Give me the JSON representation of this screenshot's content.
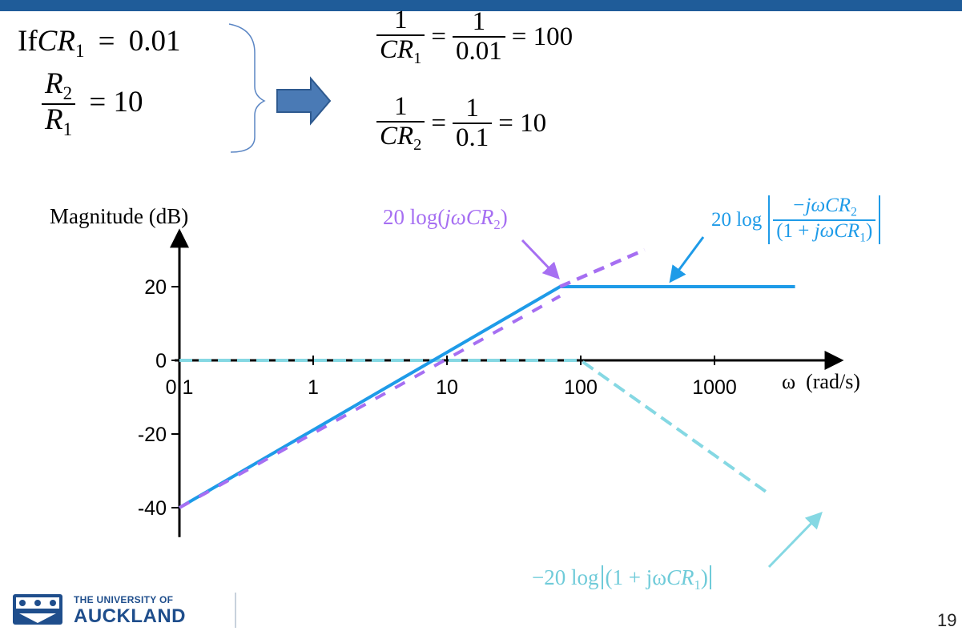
{
  "header": {
    "accent_color": "#1f5c99"
  },
  "given": {
    "if_word": "If",
    "cr1_var": "CR",
    "cr1_sub": "1",
    "cr1_eq": "=",
    "cr1_val": "0.01",
    "r2": "R",
    "r2_sub": "2",
    "r1": "R",
    "r1_sub": "1",
    "ratio_eq": "= 10"
  },
  "result": {
    "line1_num": "1",
    "line1_den_var": "CR",
    "line1_den_sub": "1",
    "line1_mid_num": "1",
    "line1_mid_den": "0.01",
    "line1_value": "= 100",
    "line2_num": "1",
    "line2_den_var": "CR",
    "line2_den_sub": "2",
    "line2_mid_num": "1",
    "line2_mid_den": "0.1",
    "line2_value": "= 10",
    "eq_sign": "="
  },
  "chart_data": {
    "type": "line",
    "xscale": "log",
    "xlim": [
      0.1,
      5000
    ],
    "ylim": [
      -48,
      33
    ],
    "xlabel": "ω  (rad/s)",
    "ylabel": "Magnitude (dB)",
    "x_ticks": [
      "0.1",
      "1",
      "10",
      "100",
      "1000"
    ],
    "y_ticks": [
      "20",
      "0",
      "-20",
      "-40"
    ],
    "series": [
      {
        "name": "20 log(jωCR2)",
        "color": "#a66ff2",
        "style": "dashed-extension",
        "points": [
          [
            0.1,
            -40
          ],
          [
            70,
            17
          ],
          [
            300,
            30
          ]
        ]
      },
      {
        "name": "20 log|-jωCR2/(1 + jωCR1)|",
        "color": "#1e9be8",
        "points": [
          [
            0.1,
            -40
          ],
          [
            70,
            20
          ],
          [
            4000,
            20
          ]
        ]
      },
      {
        "name": "−20 log|(1 + jωCR1)|",
        "color": "#85d8e3",
        "style": "dashed",
        "points": [
          [
            0.1,
            0
          ],
          [
            100,
            0
          ],
          [
            2500,
            -36
          ]
        ]
      }
    ],
    "annotations": {
      "purple_label_prefix": "20 log(",
      "purple_label_arg": "jωCR",
      "purple_label_sub": "2",
      "purple_label_suffix": ")",
      "blue_label_prefix": "20 log",
      "blue_label_num": "−jωCR",
      "blue_label_num_sub": "2",
      "blue_label_den_pre": "(1 + ",
      "blue_label_den_var": "jωCR",
      "blue_label_den_sub": "1",
      "blue_label_den_post": ")",
      "cyan_label_prefix": "−20 log",
      "cyan_label_body": "(1 + jω",
      "cyan_label_var": "CR",
      "cyan_label_sub": "1",
      "cyan_label_suffix": ")"
    }
  },
  "footer": {
    "logo_line1": "THE UNIVERSITY OF",
    "logo_line2": "AUCKLAND",
    "page_number": "19",
    "brand_color": "#1f4e8c"
  }
}
